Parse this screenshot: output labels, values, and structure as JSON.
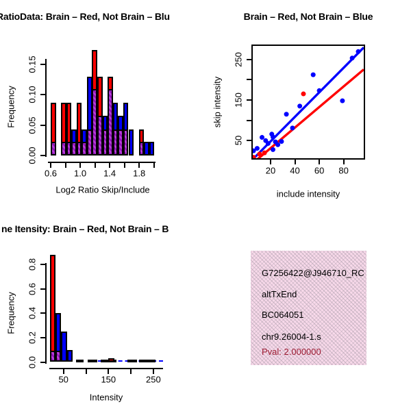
{
  "colors": {
    "red": "#FF0000",
    "blue": "#0000FF",
    "purple": "#A01EC8",
    "purple_dark": "#9114b8",
    "pval_red": "#9E1B32",
    "box_pink": "#f8d9ea",
    "black": "#000000"
  },
  "info_box": {
    "lines": [
      "G7256422@J946710_RC",
      "altTxEnd",
      "BC064051",
      "chr9.26004-1.s"
    ],
    "pval": "Pval: 2.000000"
  },
  "chart_data": [
    {
      "type": "bar",
      "panel": "top-left",
      "title": "RatioData: Brain – Red, Not Brain – Blu",
      "xlabel": "Log2 Ratio Skip/Include",
      "ylabel": "Frequency",
      "xlim": [
        0.55,
        2.05
      ],
      "ylim": [
        0,
        0.18
      ],
      "grid": false,
      "x_ticks": [
        0.6,
        0.8,
        1.0,
        1.2,
        1.4,
        1.6,
        1.8,
        2.0
      ],
      "x_tick_labels": [
        "0.6",
        "",
        "1.0",
        "",
        "1.4",
        "",
        "1.8",
        ""
      ],
      "y_ticks": [
        0.0,
        0.05,
        0.1,
        0.15
      ],
      "y_tick_labels": [
        "0.00",
        "0.05",
        "0.10",
        "0.15"
      ],
      "bin_width": 0.0703,
      "bars": [
        {
          "x0": 0.6,
          "color": "red",
          "height": 0.087,
          "overlap": 0.022
        },
        {
          "x0": 0.741,
          "color": "red",
          "height": 0.087,
          "overlap": 0.022
        },
        {
          "x0": 0.811,
          "color": "red",
          "height": 0.087,
          "overlap": 0.022
        },
        {
          "x0": 0.881,
          "color": "blue",
          "height": 0.043,
          "overlap": 0.022
        },
        {
          "x0": 0.952,
          "color": "red",
          "height": 0.087,
          "overlap": 0.022
        },
        {
          "x0": 1.022,
          "color": "blue",
          "height": 0.043,
          "overlap": 0.022
        },
        {
          "x0": 1.092,
          "color": "blue",
          "height": 0.13,
          "overlap": 0.043
        },
        {
          "x0": 1.162,
          "color": "red",
          "height": 0.174,
          "overlap": 0.109
        },
        {
          "x0": 1.233,
          "color": "red",
          "height": 0.13,
          "overlap": 0.065
        },
        {
          "x0": 1.303,
          "color": "blue",
          "height": 0.065,
          "overlap": 0.043
        },
        {
          "x0": 1.373,
          "color": "red",
          "height": 0.13,
          "overlap": 0.109
        },
        {
          "x0": 1.444,
          "color": "blue",
          "height": 0.087,
          "overlap": 0.043
        },
        {
          "x0": 1.514,
          "color": "blue",
          "height": 0.065,
          "overlap": 0.043
        },
        {
          "x0": 1.584,
          "color": "blue",
          "height": 0.087,
          "overlap": 0.043
        },
        {
          "x0": 1.655,
          "color": "blue",
          "height": 0.043,
          "overlap": 0
        },
        {
          "x0": 1.795,
          "color": "red",
          "height": 0.043,
          "overlap": 0.022
        },
        {
          "x0": 1.865,
          "color": "blue",
          "height": 0.022,
          "overlap": 0
        },
        {
          "x0": 1.936,
          "color": "blue",
          "height": 0.022,
          "overlap": 0
        }
      ]
    },
    {
      "type": "scatter",
      "panel": "top-right",
      "title": "Brain – Red, Not Brain – Blue",
      "xlabel": "include intensity",
      "ylabel": "skip intensity",
      "xlim": [
        5.4,
        96.5
      ],
      "ylim": [
        6.7,
        283
      ],
      "grid": false,
      "x_ticks": [
        20,
        40,
        60,
        80
      ],
      "x_tick_labels": [
        "20",
        "40",
        "60",
        "80"
      ],
      "y_ticks": [
        50,
        100,
        150,
        200,
        250
      ],
      "y_tick_labels": [
        "50",
        "",
        "150",
        "",
        "250"
      ],
      "blue_points": [
        [
          6,
          25
        ],
        [
          9,
          31
        ],
        [
          13,
          58
        ],
        [
          16,
          50
        ],
        [
          18,
          43
        ],
        [
          21,
          66
        ],
        [
          22,
          59
        ],
        [
          22,
          28
        ],
        [
          24,
          47
        ],
        [
          26,
          40
        ],
        [
          29,
          48
        ],
        [
          33,
          115
        ],
        [
          38,
          81
        ],
        [
          44,
          135
        ],
        [
          55,
          212
        ],
        [
          60,
          173
        ],
        [
          79,
          148
        ],
        [
          87,
          253
        ],
        [
          92,
          269
        ]
      ],
      "red_points": [
        [
          6,
          9
        ],
        [
          11,
          17
        ],
        [
          15,
          20
        ],
        [
          47,
          165
        ]
      ],
      "blue_line": {
        "x1": 5.4,
        "y1": 4,
        "x2": 96.5,
        "y2": 279
      },
      "red_line": {
        "x1": 6.0,
        "y1": -4,
        "x2": 96.5,
        "y2": 225
      }
    },
    {
      "type": "bar",
      "panel": "bottom-left",
      "title": "ne Itensity: Brain – Red, Not Brain – B",
      "xlabel": "Intensity",
      "ylabel": "Frequency",
      "xlim": [
        19,
        280
      ],
      "ylim": [
        0,
        0.9
      ],
      "grid": false,
      "x_ticks": [
        50,
        100,
        150,
        200,
        250
      ],
      "x_tick_labels": [
        "50",
        "",
        "150",
        "",
        "250"
      ],
      "y_ticks": [
        0.0,
        0.2,
        0.4,
        0.6,
        0.8
      ],
      "y_tick_labels": [
        "0.0",
        "0.2",
        "0.4",
        "0.6",
        "0.8"
      ],
      "bars": [
        {
          "x0": 19.5,
          "x1": 32.2,
          "color": "red",
          "height": 0.88,
          "overlap": 0.09
        },
        {
          "x0": 32.2,
          "x1": 45.0,
          "color": "blue",
          "height": 0.4,
          "overlap": 0.09
        },
        {
          "x0": 45.0,
          "x1": 57.7,
          "color": "blue",
          "height": 0.25,
          "overlap": 0
        },
        {
          "x0": 57.7,
          "x1": 70.4,
          "color": "blue",
          "height": 0.1,
          "overlap": 0
        },
        {
          "x0": 78,
          "x1": 94,
          "color": "blue",
          "height": 0.02,
          "overlap": 0
        },
        {
          "x0": 104,
          "x1": 125,
          "color": "blue",
          "height": 0.02,
          "overlap": 0
        },
        {
          "x0": 133,
          "x1": 168,
          "color": "blue",
          "height": 0.02,
          "overlap": 0
        },
        {
          "x0": 149,
          "x1": 163,
          "color": "red",
          "height": 0.03,
          "overlap": 0
        },
        {
          "x0": 192,
          "x1": 214,
          "color": "blue",
          "height": 0.02,
          "overlap": 0
        },
        {
          "x0": 218,
          "x1": 254,
          "color": "blue",
          "height": 0.02,
          "overlap": 0
        }
      ],
      "dash_line": {
        "y": 0.012,
        "x0": 127,
        "x1": 271,
        "color": "blue",
        "style": "dashed"
      }
    }
  ]
}
